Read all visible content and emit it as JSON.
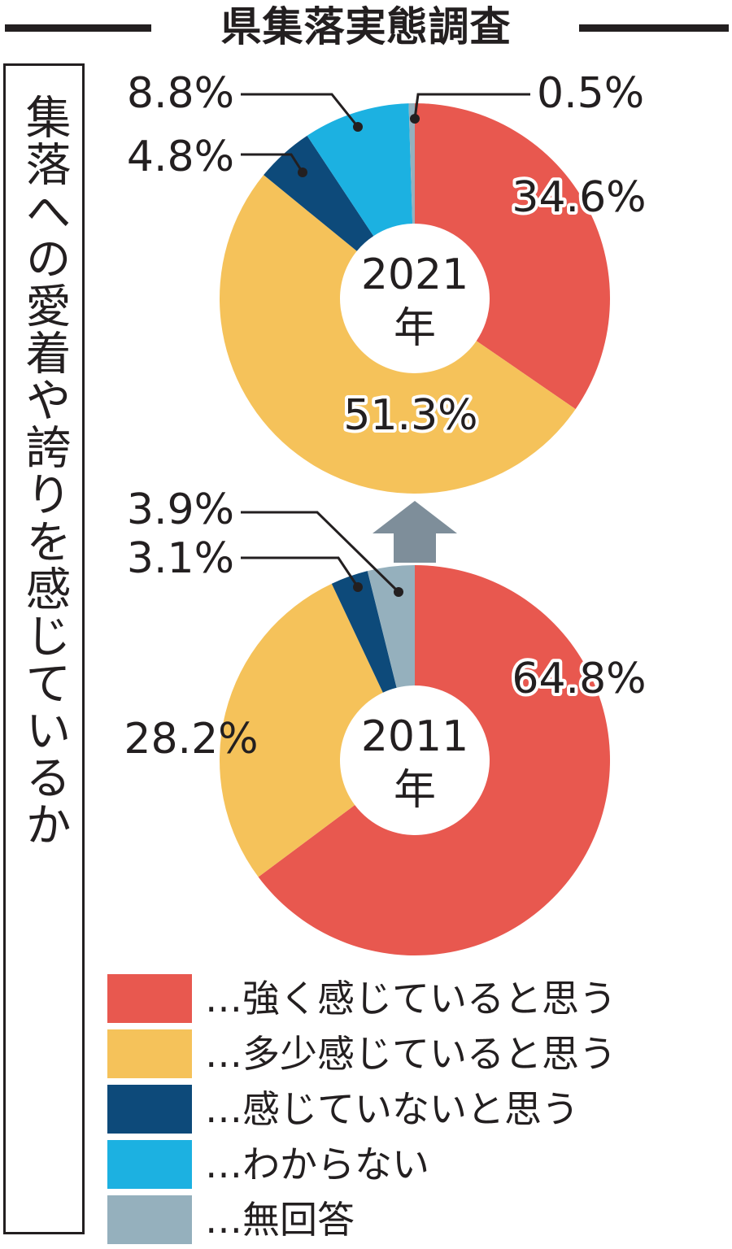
{
  "title": "県集落実態調査",
  "vertical_label": "集落への愛着や誇りを感じているか",
  "colors": {
    "strong": "#e8584f",
    "somewhat": "#f5c25a",
    "no": "#0d4a7a",
    "unknown": "#1cb1e1",
    "noanswer": "#95b0bd",
    "arrow": "#7e8e9a",
    "text": "#231f20"
  },
  "legend": [
    {
      "label": "…強く感じていると思う",
      "color": "#e8584f"
    },
    {
      "label": "…多少感じていると思う",
      "color": "#f5c25a"
    },
    {
      "label": "…感じていないと思う",
      "color": "#0d4a7a"
    },
    {
      "label": "…わからない",
      "color": "#1cb1e1"
    },
    {
      "label": "…無回答",
      "color": "#95b0bd"
    }
  ],
  "chart_data": [
    {
      "type": "pie",
      "center_label": [
        "2021",
        "年"
      ],
      "slices": [
        {
          "category": "強く感じていると思う",
          "value": 34.6,
          "label": "34.6%"
        },
        {
          "category": "多少感じていると思う",
          "value": 51.3,
          "label": "51.3%"
        },
        {
          "category": "感じていないと思う",
          "value": 4.8,
          "label": "4.8%"
        },
        {
          "category": "わからない",
          "value": 8.8,
          "label": "8.8%"
        },
        {
          "category": "無回答",
          "value": 0.5,
          "label": "0.5%"
        }
      ]
    },
    {
      "type": "pie",
      "center_label": [
        "2011",
        "年"
      ],
      "slices": [
        {
          "category": "強く感じていると思う",
          "value": 64.8,
          "label": "64.8%"
        },
        {
          "category": "多少感じていると思う",
          "value": 28.2,
          "label": "28.2%"
        },
        {
          "category": "感じていないと思う",
          "value": 3.1,
          "label": "3.1%"
        },
        {
          "category": "無回答",
          "value": 3.9,
          "label": "3.9%"
        }
      ]
    }
  ]
}
